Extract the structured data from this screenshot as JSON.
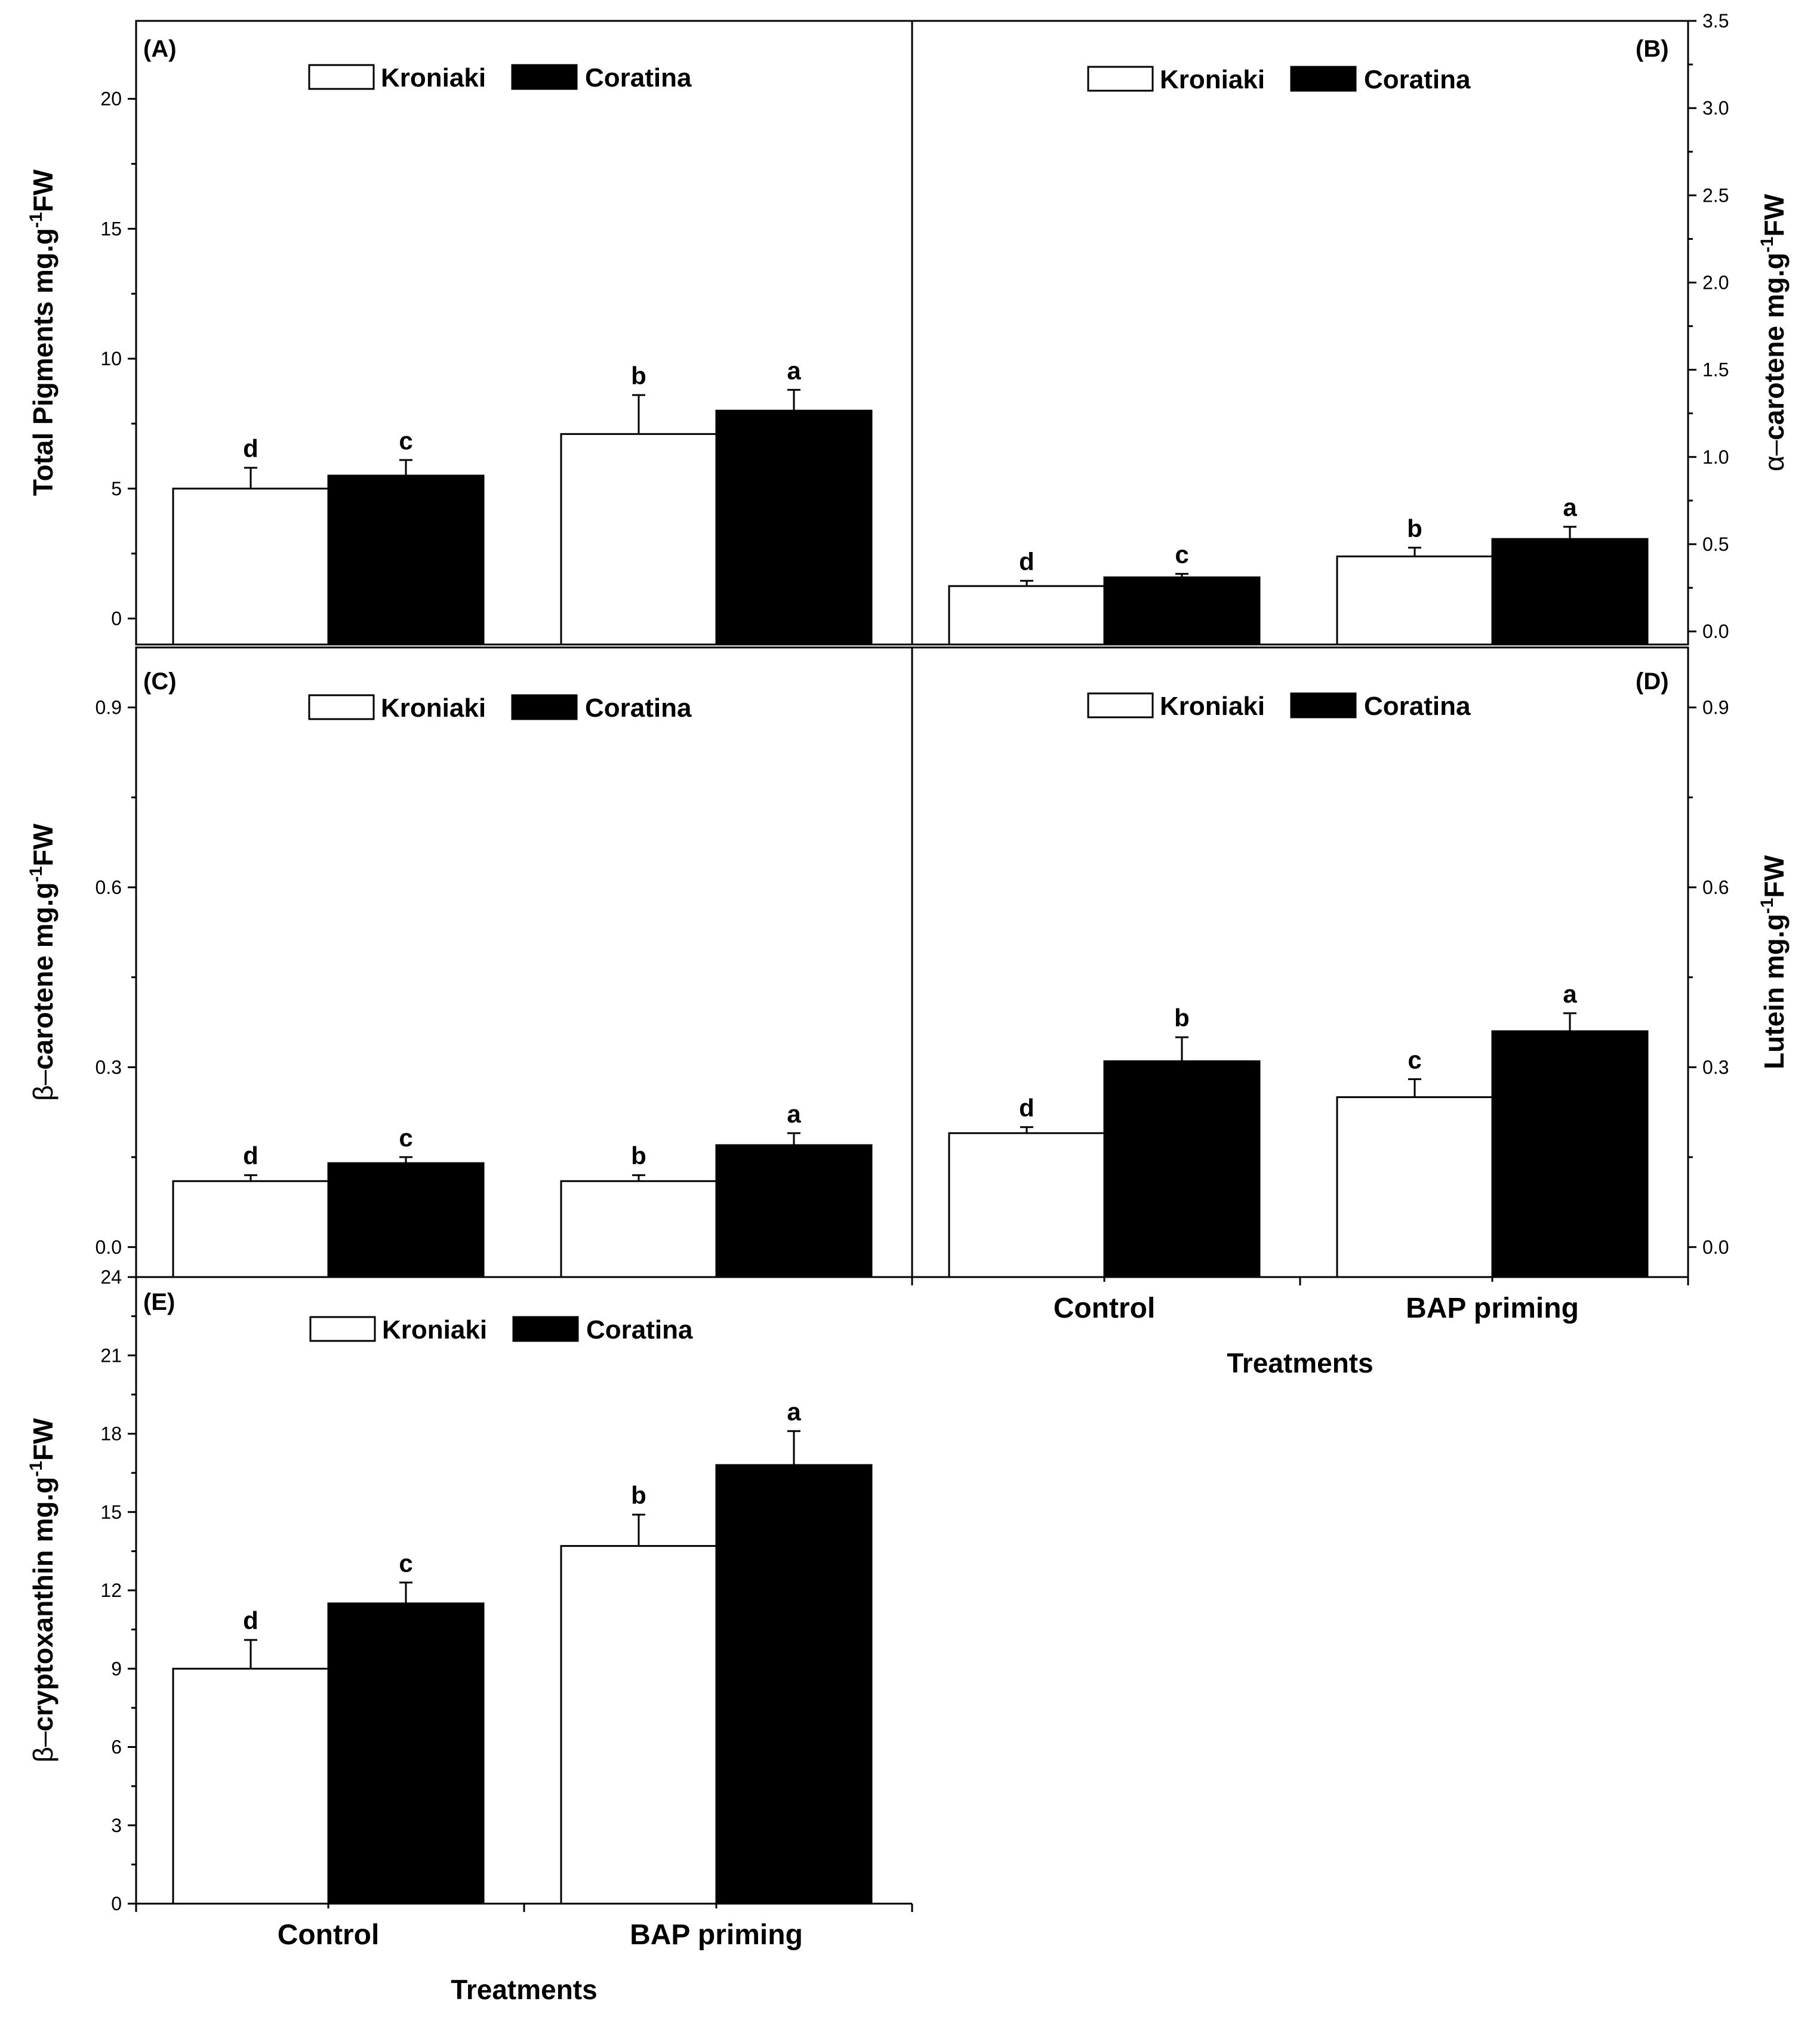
{
  "chart_data": [
    {
      "id": "A",
      "type": "bar",
      "panel_label": "(A)",
      "ylabel_prefix": "",
      "ylabel": "Total Pigments mg.g",
      "ylabel_sup": "-1",
      "ylabel_suffix": "FW",
      "ylim": [
        -1,
        23
      ],
      "yticks": [
        "0",
        "5",
        "10",
        "15",
        "20"
      ],
      "categories": [
        "Control",
        "BAP priming"
      ],
      "series": [
        {
          "name": "Kroniaki",
          "color": "#ffffff",
          "values": [
            5.0,
            7.1
          ],
          "errors": [
            0.8,
            1.5
          ],
          "sig": [
            "d",
            "b"
          ]
        },
        {
          "name": "Coratina",
          "color": "#000000",
          "values": [
            5.5,
            8.0
          ],
          "errors": [
            0.6,
            0.8
          ],
          "sig": [
            "c",
            "a"
          ]
        }
      ],
      "xlabel": ""
    },
    {
      "id": "B",
      "type": "bar",
      "panel_label": "(B)",
      "ylabel_prefix": "α–",
      "ylabel": "carotene  mg.g",
      "ylabel_sup": "-1",
      "ylabel_suffix": "FW",
      "ylim": [
        -0.075,
        3.5
      ],
      "yticks": [
        "0.0",
        "0.5",
        "1.0",
        "1.5",
        "2.0",
        "2.5",
        "3.0",
        "3.5"
      ],
      "categories": [
        "Control",
        "BAP priming"
      ],
      "series": [
        {
          "name": "Kroniaki",
          "color": "#ffffff",
          "values": [
            0.26,
            0.43
          ],
          "errors": [
            0.03,
            0.05
          ],
          "sig": [
            "d",
            "b"
          ]
        },
        {
          "name": "Coratina",
          "color": "#000000",
          "values": [
            0.31,
            0.53
          ],
          "errors": [
            0.02,
            0.07
          ],
          "sig": [
            "c",
            "a"
          ]
        }
      ],
      "xlabel": ""
    },
    {
      "id": "C",
      "type": "bar",
      "panel_label": "(C)",
      "ylabel_prefix": "β–",
      "ylabel": "carotene  mg.g",
      "ylabel_sup": "-1",
      "ylabel_suffix": "FW",
      "ylim": [
        -0.05,
        1.0
      ],
      "yticks": [
        "0.0",
        "0.3",
        "0.6",
        "0.9"
      ],
      "categories": [
        "Control",
        "BAP priming"
      ],
      "series": [
        {
          "name": "Kroniaki",
          "color": "#ffffff",
          "values": [
            0.11,
            0.11
          ],
          "errors": [
            0.01,
            0.01
          ],
          "sig": [
            "d",
            "b"
          ]
        },
        {
          "name": "Coratina",
          "color": "#000000",
          "values": [
            0.14,
            0.17
          ],
          "errors": [
            0.01,
            0.02
          ],
          "sig": [
            "c",
            "a"
          ]
        }
      ],
      "xlabel": ""
    },
    {
      "id": "D",
      "type": "bar",
      "panel_label": "(D)",
      "ylabel_prefix": "",
      "ylabel": "Lutein  mg.g",
      "ylabel_sup": "-1",
      "ylabel_suffix": "FW",
      "ylim": [
        -0.05,
        1.0
      ],
      "yticks": [
        "0.0",
        "0.3",
        "0.6",
        "0.9"
      ],
      "categories": [
        "Control",
        "BAP priming"
      ],
      "series": [
        {
          "name": "Kroniaki",
          "color": "#ffffff",
          "values": [
            0.19,
            0.25
          ],
          "errors": [
            0.01,
            0.03
          ],
          "sig": [
            "d",
            "c"
          ]
        },
        {
          "name": "Coratina",
          "color": "#000000",
          "values": [
            0.31,
            0.36
          ],
          "errors": [
            0.04,
            0.03
          ],
          "sig": [
            "b",
            "a"
          ]
        }
      ],
      "xlabel": "Treatments"
    },
    {
      "id": "E",
      "type": "bar",
      "panel_label": "(E)",
      "ylabel_prefix": "β–",
      "ylabel": "cryptoxanthin  mg.g",
      "ylabel_sup": "-1",
      "ylabel_suffix": "FW",
      "ylim": [
        0,
        24
      ],
      "yticks": [
        "0",
        "3",
        "6",
        "9",
        "12",
        "15",
        "18",
        "21",
        "24"
      ],
      "categories": [
        "Control",
        "BAP priming"
      ],
      "series": [
        {
          "name": "Kroniaki",
          "color": "#ffffff",
          "values": [
            9.0,
            13.7
          ],
          "errors": [
            1.1,
            1.2
          ],
          "sig": [
            "d",
            "b"
          ]
        },
        {
          "name": "Coratina",
          "color": "#000000",
          "values": [
            11.5,
            16.8
          ],
          "errors": [
            0.8,
            1.3
          ],
          "sig": [
            "c",
            "a"
          ]
        }
      ],
      "xlabel": "Treatments"
    }
  ]
}
